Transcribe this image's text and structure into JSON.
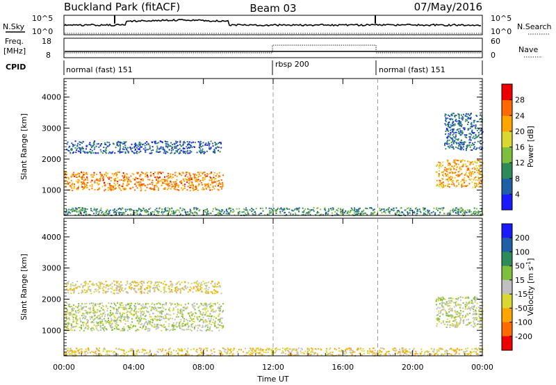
{
  "header": {
    "station": "Buckland Park (fitACF)",
    "beam": "Beam 03",
    "date": "07/May/2016"
  },
  "top_panels": {
    "nsky": {
      "label": "N.Sky",
      "tick_top": "10^5",
      "tick_bottom": "10^0",
      "right_label": "N.Search",
      "right_tick_top": "10^5",
      "right_tick_bottom": "10^0"
    },
    "freq": {
      "label_line1": "Freq.",
      "label_line2": "[MHz]",
      "tick_top": "18",
      "tick_bottom": "8",
      "right_label": "Nave",
      "right_tick_top": "60",
      "right_tick_bottom": "0"
    },
    "cpid": {
      "label": "CPID",
      "segments": [
        {
          "text": "normal (fast) 151",
          "start_hour": 0,
          "end_hour": 12
        },
        {
          "text": "rbsp 200",
          "start_hour": 12,
          "end_hour": 18
        },
        {
          "text": "normal (fast) 151",
          "start_hour": 18,
          "end_hour": 24
        }
      ]
    }
  },
  "chart_data": [
    {
      "type": "heatmap",
      "title": "",
      "xlabel": "Time UT",
      "ylabel": "Slant Range [km]",
      "xlim_hours": [
        0,
        24
      ],
      "ylim_km": [
        180,
        4600
      ],
      "x_ticks": [
        "00:00",
        "04:00",
        "08:00",
        "12:00",
        "16:00",
        "20:00",
        "00:00"
      ],
      "y_ticks": [
        1000,
        2000,
        3000,
        4000
      ],
      "colorbar": {
        "label": "Power [dB]",
        "ticks": [
          4,
          8,
          12,
          16,
          20,
          24,
          28
        ],
        "range": [
          0,
          32
        ],
        "colors": [
          "#1a1aff",
          "#1f5fa8",
          "#2e8b57",
          "#7fbf3f",
          "#d8d830",
          "#ffa500",
          "#ff6a00",
          "#ee0000"
        ]
      },
      "regions": [
        {
          "name": "main E-layer band",
          "t_start": 0.0,
          "t_end": 9.1,
          "range_km": [
            1000,
            1600
          ],
          "value": 24
        },
        {
          "name": "upper scatter",
          "t_start": 0.1,
          "t_end": 9.0,
          "range_km": [
            2200,
            2600
          ],
          "value": 6
        },
        {
          "name": "near range",
          "t_start": 0.0,
          "t_end": 24.0,
          "range_km": [
            200,
            450
          ],
          "value": 10
        },
        {
          "name": "evening band",
          "t_start": 21.3,
          "t_end": 24.0,
          "range_km": [
            1100,
            2000
          ],
          "value": 22
        },
        {
          "name": "evening upper",
          "t_start": 21.8,
          "t_end": 24.0,
          "range_km": [
            2300,
            3500
          ],
          "value": 7
        }
      ]
    },
    {
      "type": "heatmap",
      "title": "",
      "xlabel": "Time UT",
      "ylabel": "Slant Range [km]",
      "xlim_hours": [
        0,
        24
      ],
      "ylim_km": [
        180,
        4600
      ],
      "x_ticks": [
        "00:00",
        "04:00",
        "08:00",
        "12:00",
        "16:00",
        "20:00",
        "00:00"
      ],
      "y_ticks": [
        1000,
        2000,
        3000,
        4000
      ],
      "colorbar": {
        "label": "Velocity [m s^-1]",
        "ticks": [
          200,
          100,
          50,
          15,
          -15,
          -50,
          -100,
          -200
        ],
        "range": [
          -250,
          250
        ],
        "colors": [
          "#ee0000",
          "#ff6a00",
          "#ffa500",
          "#d8d830",
          "#c0c0c0",
          "#7fbf3f",
          "#2e8b57",
          "#1f5fa8",
          "#1a1aff"
        ]
      },
      "regions": [
        {
          "name": "ground scatter band",
          "t_start": 0.0,
          "t_end": 9.1,
          "range_km": [
            1000,
            1900
          ],
          "value": 0
        },
        {
          "name": "upper scatter",
          "t_start": 0.1,
          "t_end": 9.0,
          "range_km": [
            2200,
            2600
          ],
          "value": -40
        },
        {
          "name": "near range",
          "t_start": 0.0,
          "t_end": 24.0,
          "range_km": [
            200,
            450
          ],
          "value": -60
        },
        {
          "name": "evening band",
          "t_start": 21.3,
          "t_end": 24.0,
          "range_km": [
            1100,
            2100
          ],
          "value": 5
        }
      ]
    }
  ]
}
